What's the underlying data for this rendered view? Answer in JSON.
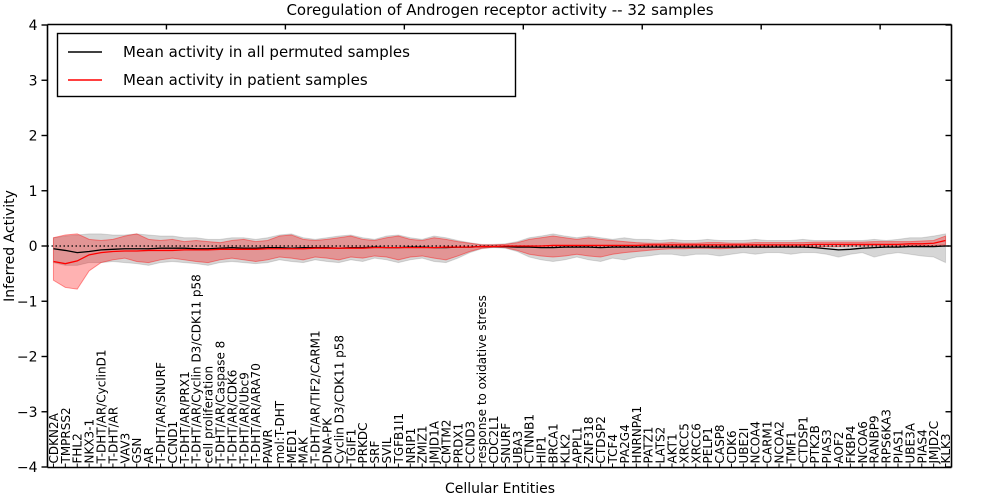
{
  "figure": {
    "title": "Coregulation of Androgen receptor activity -- 32 samples",
    "xlabel": "Cellular Entities",
    "ylabel": "Inferred Activity"
  },
  "chart_data": {
    "type": "line",
    "title": "Coregulation of Androgen receptor activity -- 32 samples",
    "xlabel": "Cellular Entities",
    "ylabel": "Inferred Activity",
    "ylim": [
      -4,
      4
    ],
    "yticks": [
      4,
      3,
      2,
      1,
      0,
      -1,
      -2,
      -3,
      -4
    ],
    "ytick_labels": [
      "4",
      "3",
      "2",
      "1",
      "0",
      "−1",
      "−2",
      "−3",
      "−4"
    ],
    "grid": false,
    "legend_position": "upper left",
    "zero_line": true,
    "top_tick_interval": 10,
    "colors": {
      "permuted_line": "#000000",
      "patient_line": "#ff0000",
      "permuted_band": "rgba(0,0,0,0.16)",
      "patient_band": "rgba(255,0,0,0.30)",
      "permuted_band_edge": "rgba(0,0,0,0.12)",
      "patient_band_edge": "rgba(255,0,0,0.40)",
      "axis": "#000000",
      "background": "#ffffff"
    },
    "categories": [
      "CDKN2A",
      "TMPRSS2",
      "FHL2",
      "NKX3-1",
      "T-DHT/AR/CyclinD1",
      "T-DHT/AR",
      "VAV3",
      "GSN",
      "AR",
      "T-DHT/AR/SNURF",
      "CCND1",
      "T-DHT/AR/PRX1",
      "T-DHT/AR/Cyclin D3/CDK11 p58",
      "cell proliferation",
      "T-DHT/AR/Caspase 8",
      "T-DHT/AR/CDK6",
      "T-DHT/AR/Ubc9",
      "T-DHT/AR/ARA70",
      "PAWR",
      "mol:T-DHT",
      "MED1",
      "MAK",
      "T-DHT/AR/TIF2/CARM1",
      "DNA-PK",
      "Cyclin D3/CDK11 p58",
      "TGIF1",
      "PRKDC",
      "SRF",
      "SVIL",
      "TGFB1I1",
      "NRIP1",
      "ZMIZ1",
      "JMJD1A",
      "CMTM2",
      "PRDX1",
      "CCND3",
      "response to oxidative stress",
      "CDC2L1",
      "SNURF",
      "UBA3",
      "CTNNB1",
      "HIP1",
      "BRCA1",
      "KLK2",
      "APPL1",
      "ZNF318",
      "CTDSP2",
      "TCF4",
      "PA2G4",
      "HNRNPA1",
      "PATZ1",
      "LATS2",
      "AKT1",
      "XRCC5",
      "XRCC6",
      "PELP1",
      "CASP8",
      "CDK6",
      "UBE2I",
      "NCOA4",
      "CARM1",
      "NCOA2",
      "TMF1",
      "CTDSP1",
      "PTK2B",
      "PIAS3",
      "AOF2",
      "FKBP4",
      "NCOA6",
      "RANBP9",
      "RPS6KA3",
      "PIAS1",
      "UBE3A",
      "PIAS4",
      "JMJD2C",
      "KLK3"
    ],
    "series": [
      {
        "name": "Mean activity in all permuted samples",
        "color": "#000000",
        "values": [
          -0.05,
          -0.08,
          -0.12,
          -0.1,
          -0.07,
          -0.06,
          -0.05,
          -0.05,
          -0.05,
          -0.04,
          -0.04,
          -0.04,
          -0.05,
          -0.05,
          -0.04,
          -0.03,
          -0.04,
          -0.04,
          -0.03,
          -0.03,
          -0.04,
          -0.03,
          -0.03,
          -0.03,
          -0.04,
          -0.03,
          -0.03,
          -0.02,
          -0.03,
          -0.03,
          -0.02,
          -0.02,
          -0.03,
          -0.03,
          -0.02,
          -0.02,
          -0.01,
          -0.01,
          -0.01,
          -0.02,
          -0.02,
          -0.03,
          -0.03,
          -0.02,
          -0.02,
          -0.02,
          -0.03,
          -0.02,
          -0.02,
          -0.02,
          -0.02,
          -0.02,
          -0.02,
          -0.02,
          -0.02,
          -0.02,
          -0.02,
          -0.02,
          -0.02,
          -0.02,
          -0.02,
          -0.02,
          -0.02,
          -0.02,
          -0.03,
          -0.05,
          -0.07,
          -0.06,
          -0.04,
          -0.03,
          -0.02,
          -0.02,
          -0.01,
          -0.01,
          -0.01,
          0.0
        ],
        "band_high": [
          0.15,
          0.18,
          0.2,
          0.22,
          0.22,
          0.2,
          0.2,
          0.22,
          0.2,
          0.18,
          0.18,
          0.15,
          0.15,
          0.12,
          0.12,
          0.15,
          0.15,
          0.12,
          0.15,
          0.2,
          0.22,
          0.15,
          0.12,
          0.15,
          0.18,
          0.2,
          0.15,
          0.12,
          0.18,
          0.2,
          0.15,
          0.12,
          0.18,
          0.15,
          0.1,
          0.06,
          0.03,
          0.03,
          0.04,
          0.08,
          0.15,
          0.18,
          0.22,
          0.18,
          0.15,
          0.18,
          0.15,
          0.12,
          0.15,
          0.12,
          0.12,
          0.1,
          0.12,
          0.1,
          0.1,
          0.12,
          0.1,
          0.1,
          0.1,
          0.12,
          0.1,
          0.1,
          0.1,
          0.12,
          0.1,
          0.1,
          0.1,
          0.1,
          0.1,
          0.12,
          0.1,
          0.12,
          0.15,
          0.15,
          0.18,
          0.22
        ],
        "band_low": [
          -0.3,
          -0.35,
          -0.35,
          -0.3,
          -0.3,
          -0.28,
          -0.3,
          -0.32,
          -0.35,
          -0.3,
          -0.28,
          -0.3,
          -0.32,
          -0.35,
          -0.3,
          -0.28,
          -0.3,
          -0.32,
          -0.3,
          -0.25,
          -0.28,
          -0.3,
          -0.25,
          -0.28,
          -0.3,
          -0.25,
          -0.28,
          -0.22,
          -0.25,
          -0.3,
          -0.25,
          -0.22,
          -0.28,
          -0.3,
          -0.22,
          -0.12,
          -0.05,
          -0.03,
          -0.04,
          -0.1,
          -0.2,
          -0.25,
          -0.28,
          -0.25,
          -0.2,
          -0.25,
          -0.28,
          -0.22,
          -0.25,
          -0.2,
          -0.18,
          -0.15,
          -0.15,
          -0.18,
          -0.15,
          -0.15,
          -0.18,
          -0.15,
          -0.12,
          -0.15,
          -0.12,
          -0.12,
          -0.15,
          -0.12,
          -0.12,
          -0.15,
          -0.2,
          -0.15,
          -0.12,
          -0.2,
          -0.15,
          -0.12,
          -0.15,
          -0.18,
          -0.2,
          -0.3
        ]
      },
      {
        "name": "Mean activity in patient samples",
        "color": "#ff0000",
        "values": [
          -0.28,
          -0.32,
          -0.27,
          -0.16,
          -0.12,
          -0.1,
          -0.09,
          -0.09,
          -0.08,
          -0.08,
          -0.08,
          -0.07,
          -0.07,
          -0.07,
          -0.06,
          -0.06,
          -0.06,
          -0.06,
          -0.05,
          -0.05,
          -0.05,
          -0.05,
          -0.04,
          -0.04,
          -0.04,
          -0.04,
          -0.04,
          -0.03,
          -0.03,
          -0.03,
          -0.03,
          -0.03,
          -0.03,
          -0.02,
          -0.02,
          -0.02,
          -0.01,
          -0.01,
          0.0,
          0.0,
          0.0,
          0.0,
          0.01,
          0.01,
          0.01,
          0.01,
          0.01,
          0.01,
          0.01,
          0.01,
          0.02,
          0.02,
          0.02,
          0.02,
          0.02,
          0.02,
          0.02,
          0.02,
          0.02,
          0.02,
          0.02,
          0.02,
          0.02,
          0.02,
          0.03,
          0.03,
          0.03,
          0.03,
          0.03,
          0.03,
          0.03,
          0.03,
          0.04,
          0.04,
          0.05,
          0.1
        ],
        "band_high": [
          0.15,
          0.2,
          0.22,
          0.12,
          0.1,
          0.12,
          0.18,
          0.22,
          0.12,
          0.1,
          0.12,
          0.08,
          0.1,
          0.08,
          0.06,
          0.1,
          0.12,
          0.08,
          0.1,
          0.18,
          0.2,
          0.12,
          0.1,
          0.12,
          0.15,
          0.18,
          0.12,
          0.1,
          0.15,
          0.18,
          0.12,
          0.1,
          0.15,
          0.12,
          0.08,
          0.05,
          0.02,
          0.02,
          0.03,
          0.06,
          0.12,
          0.15,
          0.18,
          0.15,
          0.12,
          0.15,
          0.12,
          0.1,
          0.08,
          0.06,
          0.05,
          0.05,
          0.06,
          0.05,
          0.05,
          0.06,
          0.06,
          0.05,
          0.05,
          0.06,
          0.06,
          0.06,
          0.06,
          0.06,
          0.07,
          0.07,
          0.07,
          0.07,
          0.07,
          0.08,
          0.08,
          0.08,
          0.08,
          0.09,
          0.1,
          0.18
        ],
        "band_low": [
          -0.62,
          -0.75,
          -0.78,
          -0.45,
          -0.3,
          -0.25,
          -0.22,
          -0.28,
          -0.3,
          -0.25,
          -0.22,
          -0.25,
          -0.28,
          -0.3,
          -0.25,
          -0.22,
          -0.25,
          -0.28,
          -0.25,
          -0.2,
          -0.22,
          -0.25,
          -0.2,
          -0.22,
          -0.25,
          -0.2,
          -0.22,
          -0.18,
          -0.2,
          -0.25,
          -0.2,
          -0.18,
          -0.22,
          -0.25,
          -0.18,
          -0.1,
          -0.04,
          -0.02,
          -0.03,
          -0.08,
          -0.15,
          -0.18,
          -0.2,
          -0.18,
          -0.15,
          -0.18,
          -0.2,
          -0.15,
          -0.12,
          -0.1,
          -0.08,
          -0.06,
          -0.05,
          -0.05,
          -0.04,
          -0.04,
          -0.05,
          -0.04,
          -0.03,
          -0.03,
          -0.03,
          -0.02,
          -0.02,
          -0.02,
          -0.02,
          -0.01,
          -0.01,
          0.0,
          0.0,
          0.0,
          0.0,
          0.0,
          0.01,
          0.01,
          0.01,
          0.02
        ]
      }
    ]
  }
}
